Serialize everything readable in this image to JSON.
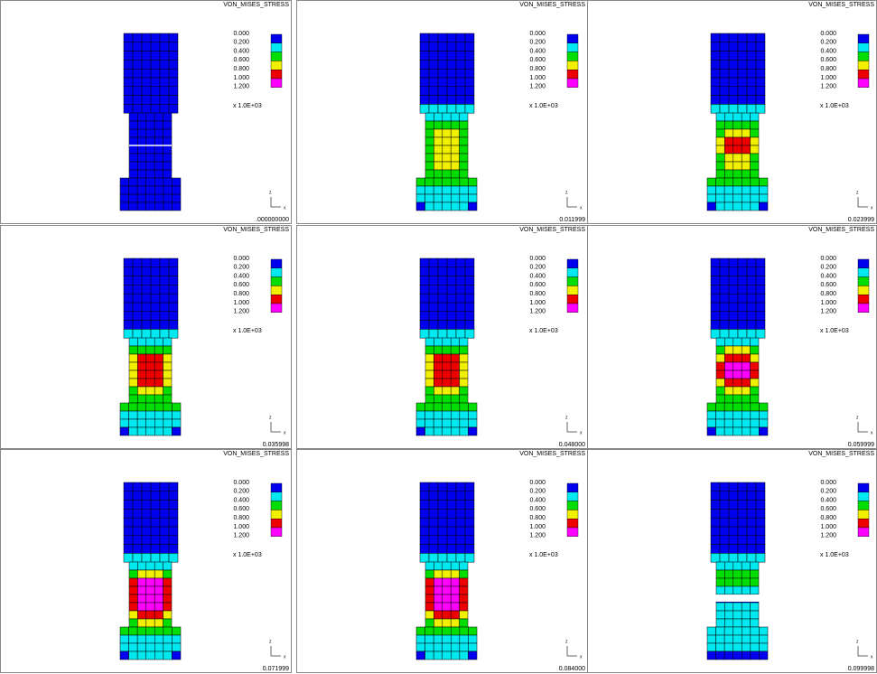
{
  "panels": [
    {
      "title": "VON_MISES_STRESS",
      "time": ".000000000"
    },
    {
      "title": "VON_MISES_STRESS",
      "time": "0.011999"
    },
    {
      "title": "VON_MISES_STRESS",
      "time": "0.023999"
    },
    {
      "title": "VON_MISES_STRESS",
      "time": "0.035998"
    },
    {
      "title": "VON_MISES_STRESS",
      "time": "0.048000"
    },
    {
      "title": "VON_MISES_STRESS",
      "time": "0.059999"
    },
    {
      "title": "VON_MISES_STRESS",
      "time": "0.071999"
    },
    {
      "title": "VON_MISES_STRESS",
      "time": "0.084000"
    },
    {
      "title": "VON_MISES_STRESS",
      "time": "0.099998"
    }
  ],
  "legend": {
    "labels": [
      "0.000",
      "0.200",
      "0.400",
      "0.600",
      "0.800",
      "1.000",
      "1.200"
    ],
    "multiplier": "x 1.0E+03",
    "colors": [
      "#0000ee",
      "#00e8f0",
      "#00dd00",
      "#f0f000",
      "#ee0000",
      "#ff00ff"
    ]
  },
  "axes": {
    "z": "z",
    "x": "x"
  }
}
